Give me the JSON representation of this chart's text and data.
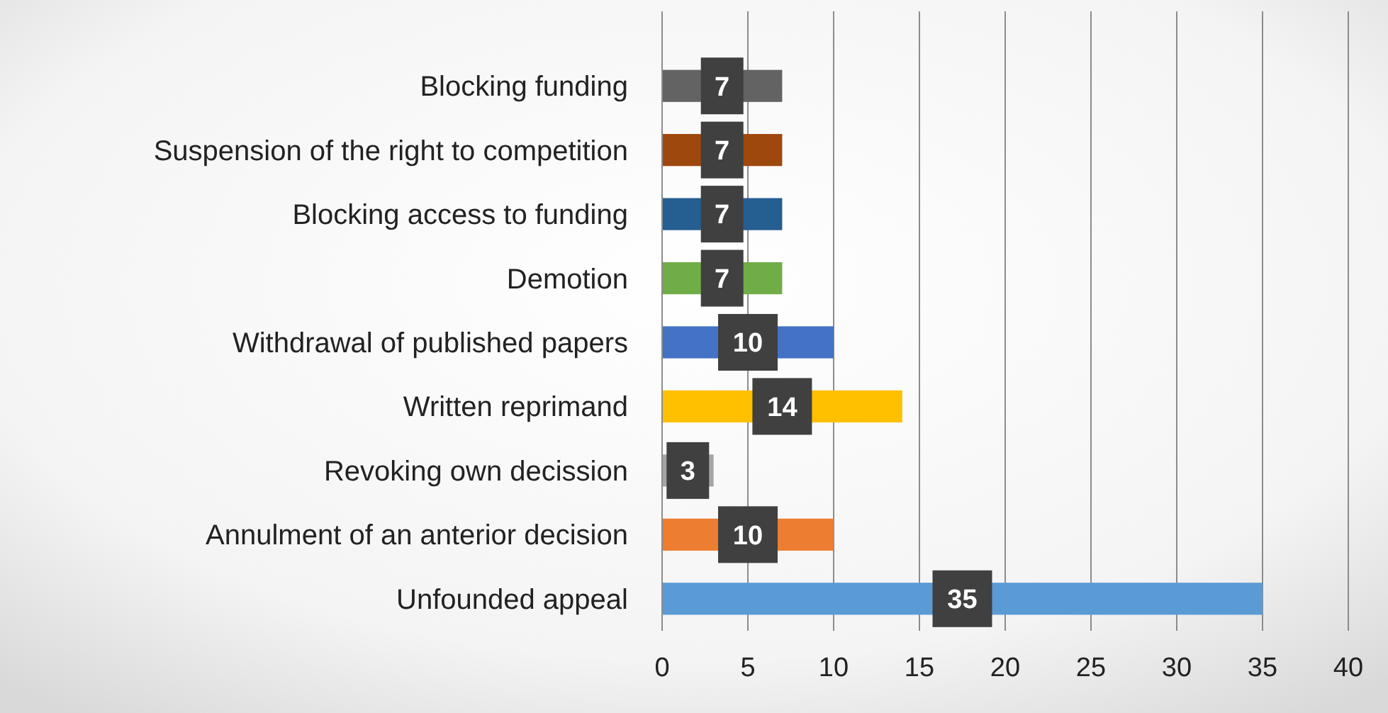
{
  "chart_data": {
    "type": "bar",
    "orientation": "horizontal",
    "categories": [
      "Blocking funding",
      "Suspension of the right to competition",
      "Blocking access to funding",
      "Demotion",
      "Withdrawal of published papers",
      "Written reprimand",
      "Revoking own decission",
      "Annulment of an anterior decision",
      "Unfounded appeal"
    ],
    "values": [
      7,
      7,
      7,
      7,
      10,
      14,
      3,
      10,
      35
    ],
    "colors": [
      "#636363",
      "#9e480e",
      "#255e91",
      "#70ad47",
      "#4472c4",
      "#ffc000",
      "#a5a5a5",
      "#ed7d31",
      "#5b9bd5"
    ],
    "xlim": [
      0,
      40
    ],
    "xticks": [
      0,
      5,
      10,
      15,
      20,
      25,
      30,
      35,
      40
    ],
    "grid": "x",
    "data_labels": true
  }
}
